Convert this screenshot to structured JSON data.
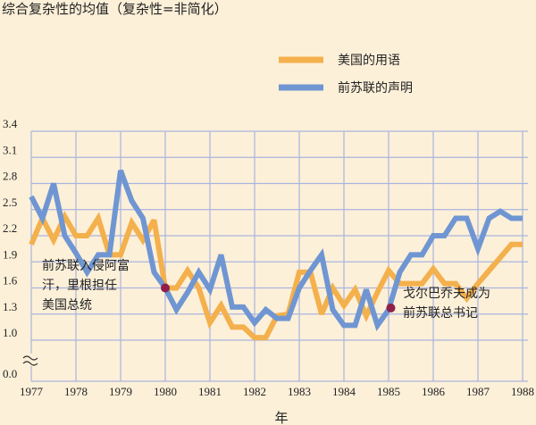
{
  "chart_data": {
    "type": "line",
    "title": "综合复杂性的均值（复杂性=非简化）",
    "xlabel": "年",
    "ylabel": "",
    "x_ticks": [
      "1977",
      "1978",
      "1979",
      "1980",
      "1981",
      "1982",
      "1983",
      "1984",
      "1985",
      "1986",
      "1987",
      "1988"
    ],
    "y_ticks": [
      "0.0",
      "1.0",
      "1.3",
      "1.6",
      "1.9",
      "2.2",
      "2.5",
      "2.8",
      "3.1",
      "3.4"
    ],
    "xlim": [
      1977,
      1988.1
    ],
    "ylim": [
      0.0,
      3.4
    ],
    "y_axis_break": true,
    "grid": true,
    "legend_position": "top-right",
    "series": [
      {
        "name": "美国的用语",
        "color": "#f3b04c",
        "points": [
          [
            1977.0,
            2.1
          ],
          [
            1977.25,
            2.4
          ],
          [
            1977.5,
            2.15
          ],
          [
            1977.75,
            2.42
          ],
          [
            1978.0,
            2.2
          ],
          [
            1978.25,
            2.2
          ],
          [
            1978.5,
            2.4
          ],
          [
            1978.75,
            1.98
          ],
          [
            1979.0,
            1.98
          ],
          [
            1979.25,
            2.35
          ],
          [
            1979.5,
            2.15
          ],
          [
            1979.75,
            2.38
          ],
          [
            1980.0,
            1.6
          ],
          [
            1980.25,
            1.6
          ],
          [
            1980.5,
            1.8
          ],
          [
            1980.75,
            1.6
          ],
          [
            1981.0,
            1.2
          ],
          [
            1981.25,
            1.4
          ],
          [
            1981.5,
            1.15
          ],
          [
            1981.75,
            1.15
          ],
          [
            1982.0,
            1.03
          ],
          [
            1982.25,
            1.03
          ],
          [
            1982.5,
            1.28
          ],
          [
            1982.75,
            1.3
          ],
          [
            1983.0,
            1.78
          ],
          [
            1983.25,
            1.78
          ],
          [
            1983.5,
            1.3
          ],
          [
            1983.75,
            1.6
          ],
          [
            1984.0,
            1.4
          ],
          [
            1984.25,
            1.58
          ],
          [
            1984.5,
            1.28
          ],
          [
            1984.75,
            1.55
          ],
          [
            1985.0,
            1.8
          ],
          [
            1985.25,
            1.65
          ],
          [
            1985.5,
            1.65
          ],
          [
            1985.75,
            1.65
          ],
          [
            1986.0,
            1.82
          ],
          [
            1986.25,
            1.65
          ],
          [
            1986.5,
            1.65
          ],
          [
            1986.75,
            1.48
          ],
          [
            1987.0,
            1.65
          ],
          [
            1987.25,
            1.8
          ],
          [
            1987.5,
            1.95
          ],
          [
            1987.75,
            2.1
          ],
          [
            1988.0,
            2.1
          ]
        ]
      },
      {
        "name": "前苏联的声明",
        "color": "#6f96d2",
        "points": [
          [
            1977.0,
            2.65
          ],
          [
            1977.25,
            2.4
          ],
          [
            1977.5,
            2.8
          ],
          [
            1977.75,
            2.2
          ],
          [
            1978.0,
            2.0
          ],
          [
            1978.25,
            1.78
          ],
          [
            1978.5,
            1.98
          ],
          [
            1978.75,
            1.98
          ],
          [
            1979.0,
            2.95
          ],
          [
            1979.25,
            2.6
          ],
          [
            1979.5,
            2.4
          ],
          [
            1979.75,
            1.78
          ],
          [
            1980.0,
            1.6
          ],
          [
            1980.25,
            1.35
          ],
          [
            1980.5,
            1.55
          ],
          [
            1980.75,
            1.78
          ],
          [
            1981.0,
            1.58
          ],
          [
            1981.25,
            1.98
          ],
          [
            1981.5,
            1.38
          ],
          [
            1981.75,
            1.38
          ],
          [
            1982.0,
            1.2
          ],
          [
            1982.25,
            1.35
          ],
          [
            1982.5,
            1.25
          ],
          [
            1982.75,
            1.25
          ],
          [
            1983.0,
            1.6
          ],
          [
            1983.25,
            1.8
          ],
          [
            1983.5,
            1.98
          ],
          [
            1983.75,
            1.35
          ],
          [
            1984.0,
            1.17
          ],
          [
            1984.25,
            1.17
          ],
          [
            1984.5,
            1.58
          ],
          [
            1984.75,
            1.17
          ],
          [
            1985.0,
            1.35
          ],
          [
            1985.25,
            1.78
          ],
          [
            1985.5,
            1.98
          ],
          [
            1985.75,
            1.98
          ],
          [
            1986.0,
            2.2
          ],
          [
            1986.25,
            2.2
          ],
          [
            1986.5,
            2.4
          ],
          [
            1986.75,
            2.4
          ],
          [
            1987.0,
            2.05
          ],
          [
            1987.25,
            2.4
          ],
          [
            1987.5,
            2.48
          ],
          [
            1987.75,
            2.4
          ],
          [
            1988.0,
            2.4
          ]
        ]
      }
    ],
    "annotations": [
      {
        "text_lines": [
          "前苏联入侵阿富",
          "汗，里根担任",
          "美国总统"
        ],
        "x": 1980.0,
        "y": 1.6
      },
      {
        "text_lines": [
          "戈尔巴乔夫成为",
          "前苏联总书记"
        ],
        "x": 1985.05,
        "y": 1.37
      }
    ],
    "marker_color": "#8f1f4a",
    "grid_color": "#a9b5df",
    "background": "#fdf0d9"
  }
}
